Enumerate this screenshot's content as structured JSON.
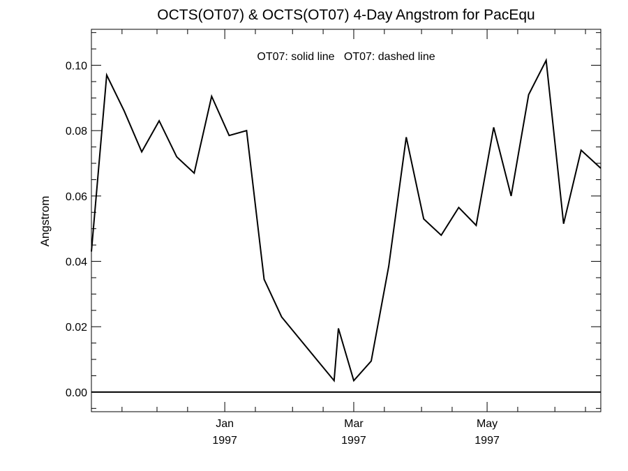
{
  "chart_data": {
    "type": "line",
    "title": "OCTS(OT07) & OCTS(OT07) 4-Day Angstrom for PacEqu",
    "ylabel": "Angstrom",
    "legend_text": "OT07: solid line   OT07: dashed line",
    "legend_placement": "top-center",
    "grid": false,
    "ylim": [
      -0.006,
      0.111
    ],
    "xlim": [
      "1996-11-01",
      "1997-06-22"
    ],
    "y_ticks": [
      {
        "value": 0.0,
        "label": "0.00"
      },
      {
        "value": 0.02,
        "label": "0.02"
      },
      {
        "value": 0.04,
        "label": "0.04"
      },
      {
        "value": 0.06,
        "label": "0.06"
      },
      {
        "value": 0.08,
        "label": "0.08"
      },
      {
        "value": 0.1,
        "label": "0.10"
      }
    ],
    "x_ticks": [
      {
        "date": "1997-01-01",
        "month": "Jan",
        "year": "1997"
      },
      {
        "date": "1997-03-01",
        "month": "Mar",
        "year": "1997"
      },
      {
        "date": "1997-05-01",
        "month": "May",
        "year": "1997"
      }
    ],
    "reference_line": {
      "y": 0.0
    },
    "series": [
      {
        "style": "solid",
        "points": [
          {
            "x": "1996-11-01",
            "y": 0.043
          },
          {
            "x": "1996-11-08",
            "y": 0.097
          },
          {
            "x": "1996-11-16",
            "y": 0.086
          },
          {
            "x": "1996-11-24",
            "y": 0.0735
          },
          {
            "x": "1996-12-02",
            "y": 0.083
          },
          {
            "x": "1996-12-10",
            "y": 0.072
          },
          {
            "x": "1996-12-18",
            "y": 0.067
          },
          {
            "x": "1996-12-26",
            "y": 0.0905
          },
          {
            "x": "1997-01-03",
            "y": 0.0785
          },
          {
            "x": "1997-01-11",
            "y": 0.08
          },
          {
            "x": "1997-01-19",
            "y": 0.0345
          },
          {
            "x": "1997-01-27",
            "y": 0.023
          },
          {
            "x": "1997-02-04",
            "y": 0.0165
          },
          {
            "x": "1997-02-12",
            "y": 0.01
          },
          {
            "x": "1997-02-20",
            "y": 0.0035
          },
          {
            "x": "1997-02-22",
            "y": 0.0195
          },
          {
            "x": "1997-03-01",
            "y": 0.0035
          },
          {
            "x": "1997-03-09",
            "y": 0.0095
          },
          {
            "x": "1997-03-17",
            "y": 0.0385
          },
          {
            "x": "1997-03-25",
            "y": 0.078
          },
          {
            "x": "1997-04-02",
            "y": 0.053
          },
          {
            "x": "1997-04-10",
            "y": 0.048
          },
          {
            "x": "1997-04-18",
            "y": 0.0565
          },
          {
            "x": "1997-04-26",
            "y": 0.051
          },
          {
            "x": "1997-05-04",
            "y": 0.081
          },
          {
            "x": "1997-05-12",
            "y": 0.06
          },
          {
            "x": "1997-05-20",
            "y": 0.091
          },
          {
            "x": "1997-05-28",
            "y": 0.1015
          },
          {
            "x": "1997-06-05",
            "y": 0.0515
          },
          {
            "x": "1997-06-13",
            "y": 0.074
          },
          {
            "x": "1997-06-22",
            "y": 0.0685
          }
        ]
      }
    ]
  }
}
